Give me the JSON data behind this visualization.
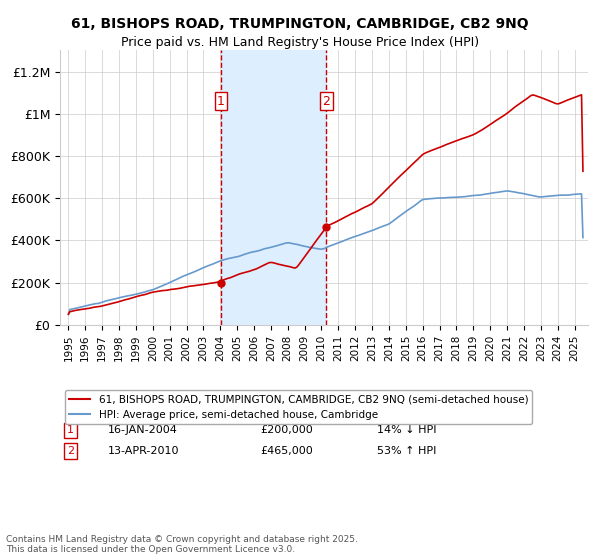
{
  "title_line1": "61, BISHOPS ROAD, TRUMPINGTON, CAMBRIDGE, CB2 9NQ",
  "title_line2": "Price paid vs. HM Land Registry's House Price Index (HPI)",
  "y_ticks": [
    0,
    200000,
    400000,
    600000,
    800000,
    1000000,
    1200000
  ],
  "y_tick_labels": [
    "£0",
    "£200K",
    "£400K",
    "£600K",
    "£800K",
    "£1M",
    "£1.2M"
  ],
  "ylim": [
    0,
    1300000
  ],
  "transaction1_date": "16-JAN-2004",
  "transaction1_price": 200000,
  "transaction1_pct": "14% ↓ HPI",
  "transaction2_date": "13-APR-2010",
  "transaction2_price": 465000,
  "transaction2_pct": "53% ↑ HPI",
  "legend_house": "61, BISHOPS ROAD, TRUMPINGTON, CAMBRIDGE, CB2 9NQ (semi-detached house)",
  "legend_hpi": "HPI: Average price, semi-detached house, Cambridge",
  "footnote": "Contains HM Land Registry data © Crown copyright and database right 2025.\nThis data is licensed under the Open Government Licence v3.0.",
  "house_color": "#cc0000",
  "hpi_color": "#6699cc",
  "shade_color": "#ddeeff",
  "vline_color": "#cc0000",
  "background_color": "#ffffff",
  "grid_color": "#cccccc"
}
